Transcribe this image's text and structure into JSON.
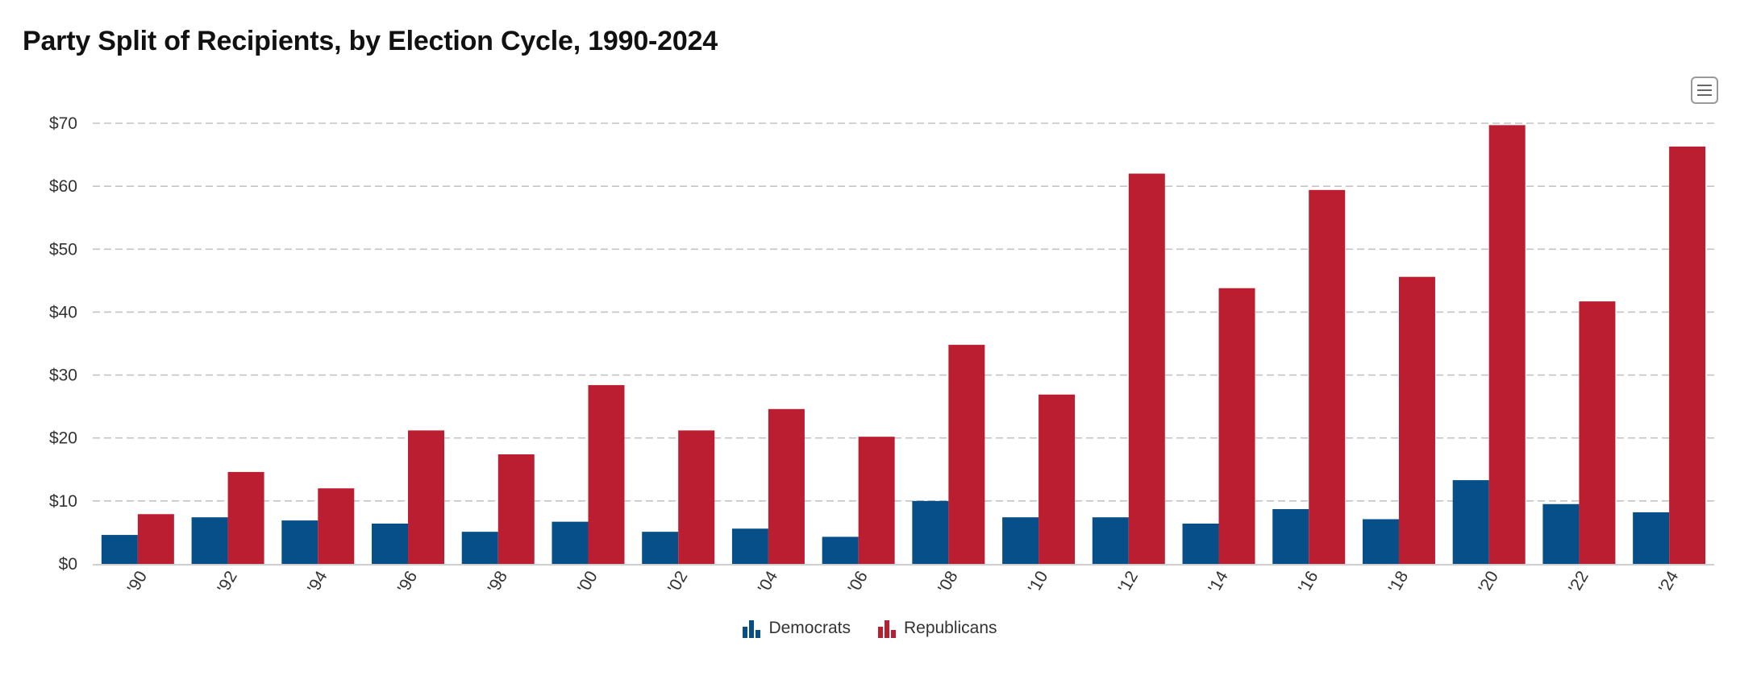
{
  "page": {
    "title": "Party Split of Recipients, by Election Cycle, 1990-2024"
  },
  "colors": {
    "democrats": "#074f88",
    "republicans": "#bc1e31",
    "grid": "#c4c4c4",
    "axis": "#cfcfcf"
  },
  "icons": {
    "menu": "hamburger-menu-icon"
  },
  "chart_data": {
    "type": "bar",
    "title": "Party Split of Recipients, by Election Cycle, 1990-2024",
    "xlabel": "",
    "ylabel": "",
    "ylim": [
      0,
      70
    ],
    "y_ticks": [
      0,
      10,
      20,
      30,
      40,
      50,
      60,
      70
    ],
    "y_tick_labels": [
      "$0",
      "$10",
      "$20",
      "$30",
      "$40",
      "$50",
      "$60",
      "$70"
    ],
    "grid": true,
    "legend_position": "bottom-center",
    "categories": [
      "'90",
      "'92",
      "'94",
      "'96",
      "'98",
      "'00",
      "'02",
      "'04",
      "'06",
      "'08",
      "'10",
      "'12",
      "'14",
      "'16",
      "'18",
      "'20",
      "'22",
      "'24"
    ],
    "series": [
      {
        "name": "Democrats",
        "color": "#074f88",
        "values": [
          4.6,
          7.4,
          6.9,
          6.4,
          5.1,
          6.7,
          5.1,
          5.6,
          4.3,
          10.0,
          7.4,
          7.4,
          6.4,
          8.7,
          7.1,
          13.3,
          9.5,
          8.2
        ]
      },
      {
        "name": "Republicans",
        "color": "#bc1e31",
        "values": [
          7.9,
          14.6,
          12.0,
          21.2,
          17.4,
          28.4,
          21.2,
          24.6,
          20.2,
          34.8,
          26.9,
          62.0,
          43.8,
          59.4,
          45.6,
          69.7,
          41.7,
          66.3
        ]
      }
    ]
  }
}
